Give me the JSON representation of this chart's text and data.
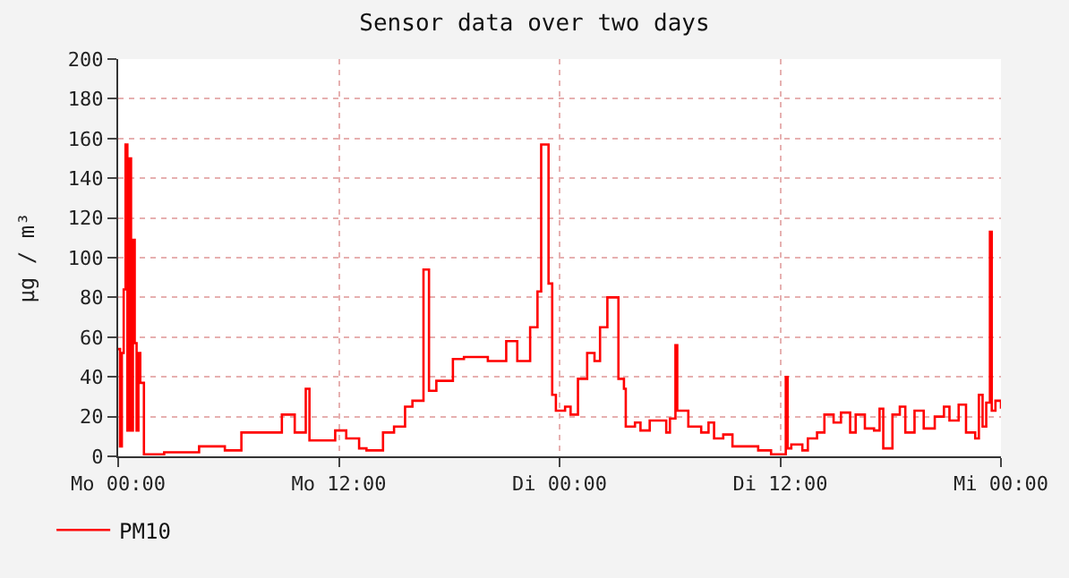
{
  "chart_data": {
    "type": "step",
    "title": "Sensor data over two days",
    "ylabel": "µg / m³",
    "x": [
      "--01-01T00:00",
      "--01-01T00:06",
      "--01-01T00:12",
      "--01-01T00:18",
      "--01-01T00:24",
      "--01-01T00:30",
      "--01-01T00:36",
      "--01-01T00:42",
      "--01-01T00:48",
      "--01-01T00:54",
      "--01-01T01:00",
      "--01-01T01:06",
      "--01-01T01:12",
      "--01-01T01:24",
      "--01-01T02:30",
      "--01-01T04:24",
      "--01-01T05:48",
      "--01-01T06:42",
      "--01-01T08:00",
      "--01-01T08:54",
      "--01-01T09:36",
      "--01-01T10:12",
      "--01-01T10:24",
      "--01-01T10:48",
      "--01-01T11:48",
      "--01-01T12:24",
      "--01-01T13:06",
      "--01-01T13:30",
      "--01-01T14:24",
      "--01-01T15:00",
      "--01-01T15:36",
      "--01-01T16:00",
      "--01-01T16:36",
      "--01-01T16:54",
      "--01-01T17:18",
      "--01-01T18:12",
      "--01-01T18:48",
      "--01-01T20:06",
      "--01-01T21:06",
      "--01-01T21:42",
      "--01-01T22:24",
      "--01-01T22:48",
      "--01-01T23:00",
      "--01-01T23:24",
      "--01-01T23:36",
      "--01-01T23:48",
      "--01-02T00:18",
      "--01-02T00:36",
      "--01-02T01:00",
      "--01-02T01:30",
      "--01-02T01:54",
      "--01-02T02:12",
      "--01-02T02:36",
      "--01-02T02:54",
      "--01-02T03:12",
      "--01-02T03:30",
      "--01-02T03:36",
      "--01-02T04:06",
      "--01-02T04:24",
      "--01-02T04:54",
      "--01-02T05:30",
      "--01-02T05:48",
      "--01-02T06:00",
      "--01-02T06:18",
      "--01-02T06:24",
      "--01-02T07:00",
      "--01-02T07:42",
      "--01-02T08:06",
      "--01-02T08:24",
      "--01-02T08:54",
      "--01-02T09:24",
      "--01-02T09:54",
      "--01-02T10:48",
      "--01-02T11:30",
      "--01-02T12:06",
      "--01-02T12:18",
      "--01-02T12:24",
      "--01-02T12:36",
      "--01-02T13:12",
      "--01-02T13:30",
      "--01-02T14:00",
      "--01-02T14:24",
      "--01-02T14:54",
      "--01-02T15:18",
      "--01-02T15:48",
      "--01-02T16:06",
      "--01-02T16:36",
      "--01-02T17:06",
      "--01-02T17:24",
      "--01-02T17:36",
      "--01-02T18:06",
      "--01-02T18:30",
      "--01-02T18:48",
      "--01-02T19:18",
      "--01-02T19:48",
      "--01-02T20:24",
      "--01-02T20:54",
      "--01-02T21:12",
      "--01-02T21:42",
      "--01-02T22:06",
      "--01-02T22:36",
      "--01-02T22:48",
      "--01-02T23:00",
      "--01-02T23:12",
      "--01-02T23:24",
      "--01-02T23:30",
      "--01-02T23:42",
      "--01-03T00:00"
    ],
    "series": [
      {
        "name": "PM10",
        "color": "#ff0000",
        "values": [
          54,
          5,
          52,
          84,
          157,
          13,
          150,
          13,
          109,
          57,
          13,
          52,
          37,
          1,
          2,
          5,
          3,
          12,
          12,
          21,
          12,
          34,
          8,
          8,
          13,
          9,
          4,
          3,
          12,
          15,
          25,
          28,
          94,
          33,
          38,
          49,
          50,
          48,
          58,
          48,
          65,
          83,
          157,
          87,
          31,
          23,
          25,
          21,
          39,
          52,
          48,
          65,
          80,
          80,
          39,
          34,
          15,
          17,
          13,
          18,
          18,
          12,
          19,
          56,
          23,
          15,
          12,
          17,
          9,
          11,
          5,
          5,
          3,
          1,
          1,
          40,
          4,
          6,
          3,
          9,
          12,
          21,
          17,
          22,
          12,
          21,
          14,
          13,
          24,
          4,
          21,
          25,
          12,
          23,
          14,
          20,
          25,
          18,
          26,
          12,
          9,
          31,
          15,
          27,
          113,
          23,
          28,
          24
        ]
      }
    ],
    "xlim": [
      "--01-01T00:00",
      "--01-03T00:00"
    ],
    "xticks": [
      {
        "value": "--01-01T00:00",
        "label": "Mo 00:00"
      },
      {
        "value": "--01-01T12:00",
        "label": "Mo 12:00"
      },
      {
        "value": "--01-02T00:00",
        "label": "Di 00:00"
      },
      {
        "value": "--01-02T12:00",
        "label": "Di 12:00"
      },
      {
        "value": "--01-03T00:00",
        "label": "Mi 00:00"
      }
    ],
    "ylim": [
      0,
      200
    ],
    "yticks": [
      0,
      20,
      40,
      60,
      80,
      100,
      120,
      140,
      160,
      180,
      200
    ],
    "grid": true,
    "legend": "bottom left",
    "marker": "none",
    "line_style": "solid"
  }
}
